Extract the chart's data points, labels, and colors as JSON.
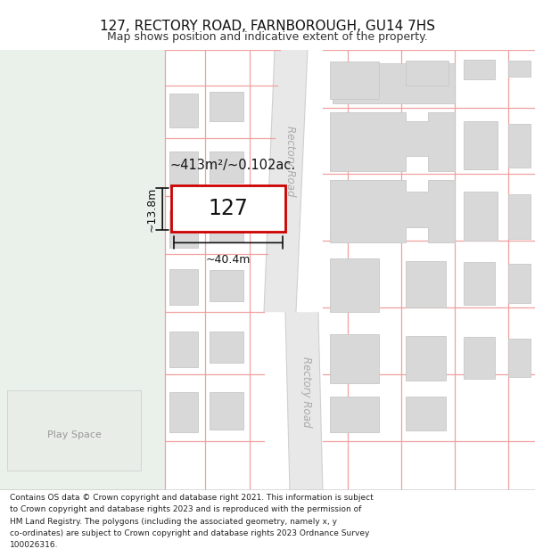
{
  "title": "127, RECTORY ROAD, FARNBOROUGH, GU14 7HS",
  "subtitle": "Map shows position and indicative extent of the property.",
  "footer": "Contains OS data © Crown copyright and database right 2021. This information is subject to Crown copyright and database rights 2023 and is reproduced with the permission of HM Land Registry. The polygons (including the associated geometry, namely x, y co-ordinates) are subject to Crown copyright and database rights 2023 Ordnance Survey 100026316.",
  "property_outline_color": "#cc0000",
  "plot_lines_color": "#f0a0a0",
  "building_fill_color": "#d8d8d8",
  "building_line_color": "#c8c8c8",
  "road_color": "#e8e8e8",
  "road_line_color": "#d0d0d0",
  "bg_left_color": "#eaf0ea",
  "dim_color": "#111111",
  "area_text": "~413m²/~0.102ac.",
  "property_label": "127",
  "width_label": "~40.4m",
  "height_label": "~13.8m",
  "road_label_upper": "Rectory Road",
  "road_label_lower": "Rectory Road",
  "play_space_label": "Play Space"
}
